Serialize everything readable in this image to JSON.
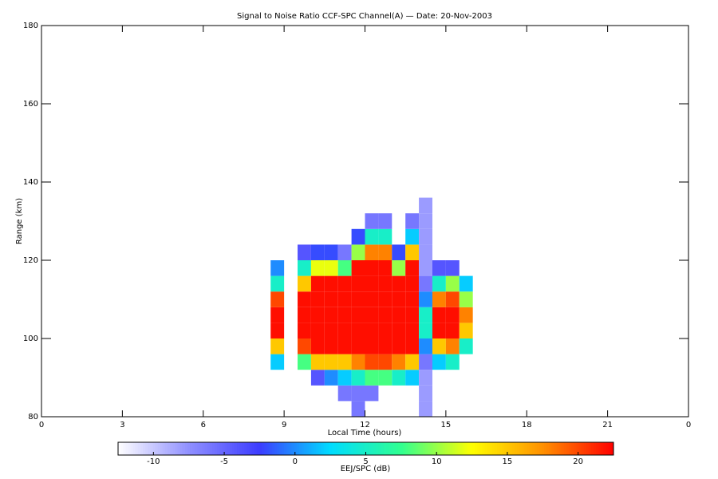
{
  "chart_data": {
    "type": "heatmap",
    "title": "Signal to Noise Ratio CCF-SPC Channel(A) — Date: 20-Nov-2003",
    "x_label": "Local Time (hours)",
    "y_label": "Range (km)",
    "colorbar_label": "EEJ/SPC (dB)",
    "xlim": [
      0,
      24
    ],
    "xticks": [
      0,
      3,
      6,
      9,
      12,
      15,
      18,
      21,
      {
        "value": 24,
        "label": "0"
      }
    ],
    "ylim": [
      80,
      180
    ],
    "yticks": [
      80,
      100,
      120,
      140,
      160,
      180
    ],
    "zlim": [
      -12.5,
      22.5
    ],
    "zticks": [
      -10,
      -5,
      0,
      5,
      10,
      15,
      20
    ],
    "colormap": [
      "#ffffff",
      "#9090ff",
      "#3c3cff",
      "#00dcff",
      "#30ff90",
      "#ffff00",
      "#ff9000",
      "#ff0000"
    ],
    "xbins": [
      8.5,
      9,
      9.5,
      10,
      10.5,
      11,
      11.5,
      12,
      12.5,
      13,
      13.5,
      14,
      14.5,
      15,
      15.5,
      16
    ],
    "ybins": [
      80,
      84,
      88,
      92,
      96,
      100,
      104,
      108,
      112,
      116,
      120,
      124,
      128,
      132,
      136
    ],
    "z": [
      [
        null,
        null,
        null,
        null,
        null,
        null,
        -6,
        null,
        null,
        null,
        null,
        -8,
        null,
        null,
        null
      ],
      [
        null,
        null,
        null,
        null,
        null,
        -6,
        -6,
        -6,
        null,
        null,
        null,
        -8,
        null,
        null,
        null
      ],
      [
        null,
        null,
        null,
        -4,
        0,
        2,
        5,
        8,
        8,
        5,
        2,
        -8,
        null,
        null,
        null
      ],
      [
        2,
        null,
        8,
        15,
        15,
        15,
        18,
        20,
        20,
        18,
        15,
        -6,
        2,
        5,
        null
      ],
      [
        15,
        null,
        20,
        22,
        22,
        22,
        22,
        22,
        22,
        22,
        22,
        0,
        15,
        18,
        5
      ],
      [
        22,
        null,
        22,
        22,
        22,
        22,
        22,
        22,
        22,
        22,
        22,
        5,
        22,
        22,
        15
      ],
      [
        22,
        null,
        22,
        22,
        22,
        22,
        22,
        22,
        22,
        22,
        22,
        5,
        22,
        22,
        18
      ],
      [
        20,
        null,
        22,
        22,
        22,
        22,
        22,
        22,
        22,
        22,
        22,
        0,
        18,
        20,
        10
      ],
      [
        5,
        null,
        15,
        22,
        22,
        22,
        22,
        22,
        22,
        22,
        22,
        -6,
        5,
        10,
        2
      ],
      [
        0,
        null,
        5,
        12,
        12,
        8,
        22,
        22,
        22,
        10,
        22,
        -8,
        -4,
        -4,
        null
      ],
      [
        null,
        null,
        -4,
        -2,
        -2,
        -6,
        10,
        18,
        18,
        -2,
        15,
        -8,
        null,
        null,
        null
      ],
      [
        null,
        null,
        null,
        null,
        null,
        null,
        -2,
        5,
        5,
        null,
        2,
        -8,
        null,
        null,
        null
      ],
      [
        null,
        null,
        null,
        null,
        null,
        null,
        null,
        -6,
        -6,
        null,
        -6,
        -8,
        null,
        null,
        null
      ],
      [
        null,
        null,
        null,
        null,
        null,
        null,
        null,
        null,
        null,
        null,
        null,
        -8,
        null,
        null,
        null
      ]
    ]
  }
}
